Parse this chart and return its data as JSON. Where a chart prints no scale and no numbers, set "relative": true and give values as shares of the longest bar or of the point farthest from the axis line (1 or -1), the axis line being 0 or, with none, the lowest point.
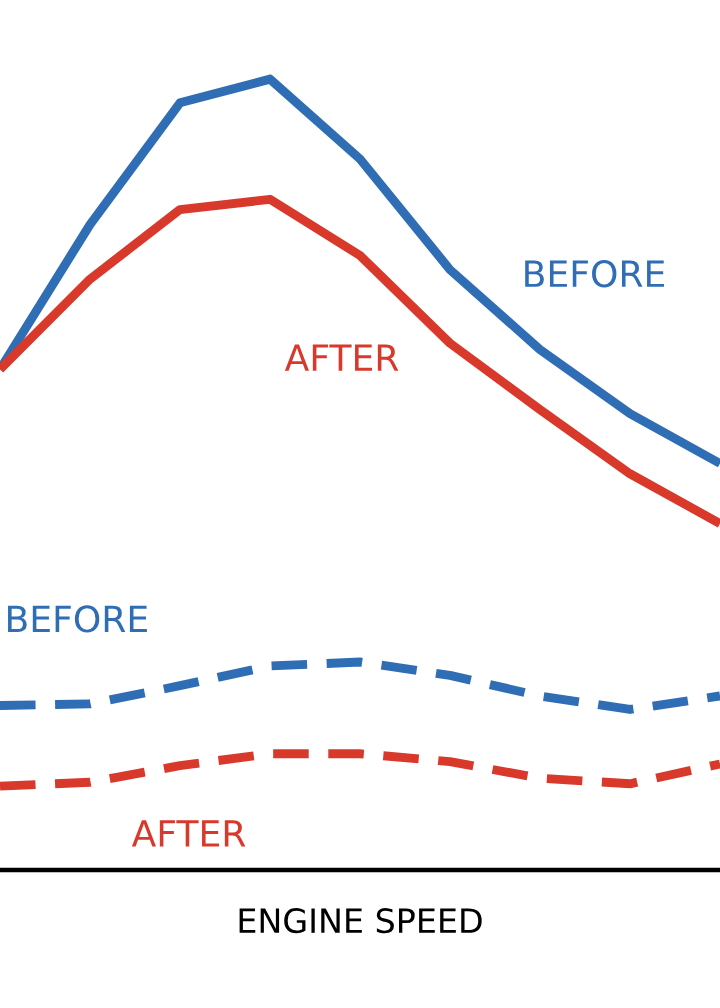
{
  "chart_data": {
    "type": "line",
    "relative": true,
    "xlabel": "ENGINE SPEED",
    "categories": [
      null,
      null,
      null,
      null,
      null,
      null,
      null,
      null,
      null
    ],
    "series": [
      {
        "name": "BEFORE",
        "color": "#2f6db5",
        "line_style": "solid",
        "values": [
          0.633,
          0.816,
          0.97,
          1.0,
          0.899,
          0.759,
          0.658,
          0.577,
          0.514
        ]
      },
      {
        "name": "AFTER",
        "color": "#d9392b",
        "line_style": "solid",
        "values": [
          0.633,
          0.747,
          0.835,
          0.848,
          0.777,
          0.666,
          0.582,
          0.501,
          0.438
        ]
      },
      {
        "name": "BEFORE",
        "color": "#2f6db5",
        "line_style": "dashed",
        "values": [
          0.208,
          0.21,
          0.233,
          0.258,
          0.263,
          0.246,
          0.22,
          0.203,
          0.22
        ]
      },
      {
        "name": "AFTER",
        "color": "#d9392b",
        "line_style": "dashed",
        "values": [
          0.106,
          0.111,
          0.132,
          0.147,
          0.147,
          0.137,
          0.116,
          0.109,
          0.134
        ]
      }
    ],
    "grid": false,
    "legend": false,
    "marker": "none"
  }
}
